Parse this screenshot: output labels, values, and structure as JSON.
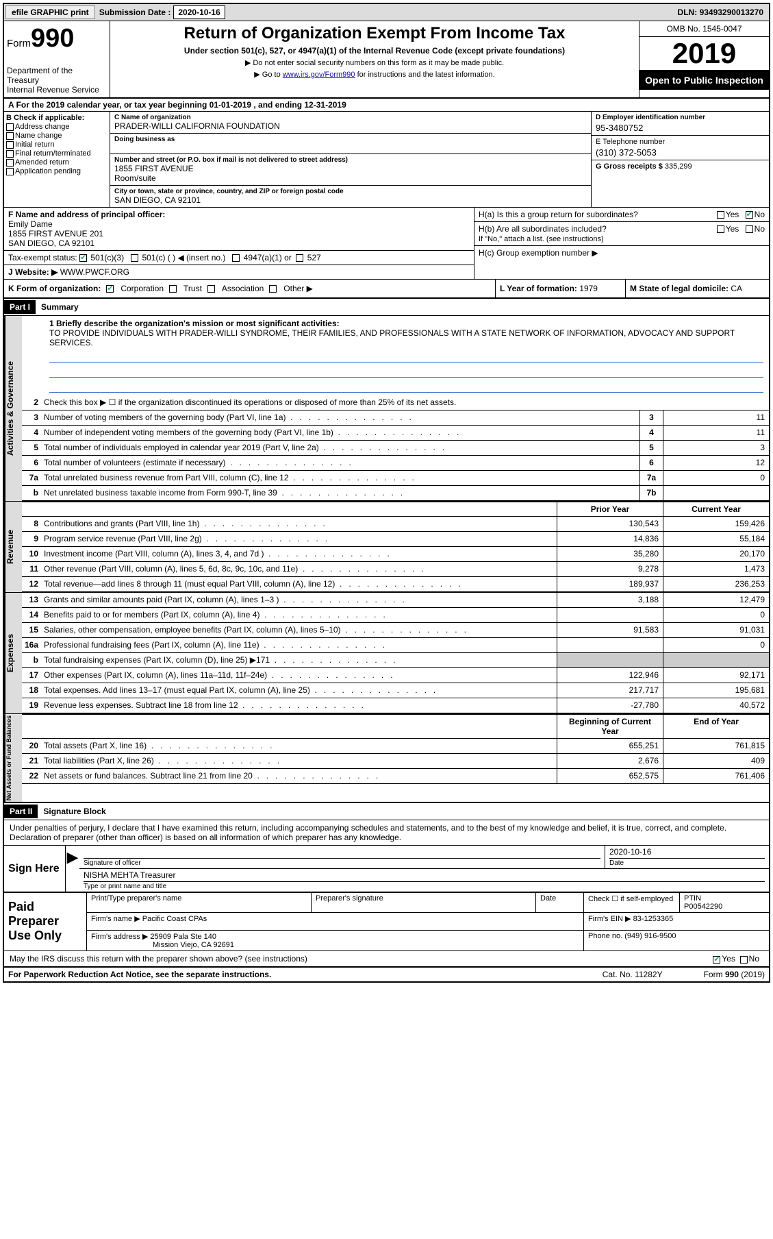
{
  "topbar": {
    "efile": "efile GRAPHIC print",
    "submission_label": "Submission Date :",
    "submission_date": "2020-10-16",
    "dln_label": "DLN:",
    "dln": "93493290013270"
  },
  "header": {
    "form_label": "Form",
    "form_number": "990",
    "dept": "Department of the Treasury\nInternal Revenue Service",
    "title": "Return of Organization Exempt From Income Tax",
    "sub": "Under section 501(c), 527, or 4947(a)(1) of the Internal Revenue Code (except private foundations)",
    "note1": "▶ Do not enter social security numbers on this form as it may be made public.",
    "note2_pre": "▶ Go to ",
    "note2_link": "www.irs.gov/Form990",
    "note2_post": " for instructions and the latest information.",
    "omb": "OMB No. 1545-0047",
    "year": "2019",
    "inspect": "Open to Public Inspection"
  },
  "section_a": "A For the 2019 calendar year, or tax year beginning 01-01-2019   , and ending 12-31-2019",
  "box_b": {
    "label": "B Check if applicable:",
    "items": [
      "Address change",
      "Name change",
      "Initial return",
      "Final return/terminated",
      "Amended return",
      "Application pending"
    ]
  },
  "box_c": {
    "name_lbl": "C Name of organization",
    "name": "PRADER-WILLI CALIFORNIA FOUNDATION",
    "dba_lbl": "Doing business as",
    "street_lbl": "Number and street (or P.O. box if mail is not delivered to street address)",
    "room_lbl": "Room/suite",
    "street": "1855 FIRST AVENUE",
    "city_lbl": "City or town, state or province, country, and ZIP or foreign postal code",
    "city": "SAN DIEGO, CA  92101"
  },
  "box_d": {
    "lbl": "D Employer identification number",
    "val": "95-3480752"
  },
  "box_e": {
    "lbl": "E Telephone number",
    "val": "(310) 372-5053"
  },
  "box_g": {
    "lbl": "G Gross receipts $",
    "val": "335,299"
  },
  "box_f": {
    "lbl": "F Name and address of principal officer:",
    "name": "Emily Dame",
    "addr1": "1855 FIRST AVENUE 201",
    "addr2": "SAN DIEGO, CA  92101"
  },
  "box_h": {
    "a": "H(a)  Is this a group return for subordinates?",
    "b": "H(b)  Are all subordinates included?",
    "b_note": "If \"No,\" attach a list. (see instructions)",
    "c": "H(c)  Group exemption number ▶"
  },
  "tax_status": {
    "lbl": "Tax-exempt status:",
    "opts": [
      "501(c)(3)",
      "501(c) (  ) ◀ (insert no.)",
      "4947(a)(1) or",
      "527"
    ]
  },
  "box_j": {
    "lbl": "J Website: ▶",
    "val": "WWW.PWCF.ORG"
  },
  "box_k": {
    "lbl": "K Form of organization:",
    "opts": [
      "Corporation",
      "Trust",
      "Association",
      "Other ▶"
    ]
  },
  "box_l": {
    "lbl": "L Year of formation:",
    "val": "1979"
  },
  "box_m": {
    "lbl": "M State of legal domicile:",
    "val": "CA"
  },
  "part1": {
    "hdr": "Part I",
    "title": "Summary"
  },
  "mission": {
    "lbl": "1  Briefly describe the organization's mission or most significant activities:",
    "text": "TO PROVIDE INDIVIDUALS WITH PRADER-WILLI SYNDROME, THEIR FAMILIES, AND PROFESSIONALS WITH A STATE NETWORK OF INFORMATION, ADVOCACY AND SUPPORT SERVICES."
  },
  "line2": "Check this box ▶ ☐  if the organization discontinued its operations or disposed of more than 25% of its net assets.",
  "sidebars": {
    "gov": "Activities & Governance",
    "rev": "Revenue",
    "exp": "Expenses",
    "net": "Net Assets or Fund Balances"
  },
  "gov_lines": [
    {
      "n": "3",
      "d": "Number of voting members of the governing body (Part VI, line 1a)",
      "box": "3",
      "v": "11"
    },
    {
      "n": "4",
      "d": "Number of independent voting members of the governing body (Part VI, line 1b)",
      "box": "4",
      "v": "11"
    },
    {
      "n": "5",
      "d": "Total number of individuals employed in calendar year 2019 (Part V, line 2a)",
      "box": "5",
      "v": "3"
    },
    {
      "n": "6",
      "d": "Total number of volunteers (estimate if necessary)",
      "box": "6",
      "v": "12"
    },
    {
      "n": "7a",
      "d": "Total unrelated business revenue from Part VIII, column (C), line 12",
      "box": "7a",
      "v": "0"
    },
    {
      "n": "b",
      "d": "Net unrelated business taxable income from Form 990-T, line 39",
      "box": "7b",
      "v": ""
    }
  ],
  "colhdrs": {
    "py": "Prior Year",
    "cy": "Current Year"
  },
  "rev_lines": [
    {
      "n": "8",
      "d": "Contributions and grants (Part VIII, line 1h)",
      "py": "130,543",
      "cy": "159,426"
    },
    {
      "n": "9",
      "d": "Program service revenue (Part VIII, line 2g)",
      "py": "14,836",
      "cy": "55,184"
    },
    {
      "n": "10",
      "d": "Investment income (Part VIII, column (A), lines 3, 4, and 7d )",
      "py": "35,280",
      "cy": "20,170"
    },
    {
      "n": "11",
      "d": "Other revenue (Part VIII, column (A), lines 5, 6d, 8c, 9c, 10c, and 11e)",
      "py": "9,278",
      "cy": "1,473"
    },
    {
      "n": "12",
      "d": "Total revenue—add lines 8 through 11 (must equal Part VIII, column (A), line 12)",
      "py": "189,937",
      "cy": "236,253"
    }
  ],
  "exp_lines": [
    {
      "n": "13",
      "d": "Grants and similar amounts paid (Part IX, column (A), lines 1–3 )",
      "py": "3,188",
      "cy": "12,479"
    },
    {
      "n": "14",
      "d": "Benefits paid to or for members (Part IX, column (A), line 4)",
      "py": "",
      "cy": "0"
    },
    {
      "n": "15",
      "d": "Salaries, other compensation, employee benefits (Part IX, column (A), lines 5–10)",
      "py": "91,583",
      "cy": "91,031"
    },
    {
      "n": "16a",
      "d": "Professional fundraising fees (Part IX, column (A), line 11e)",
      "py": "",
      "cy": "0"
    },
    {
      "n": "b",
      "d": "Total fundraising expenses (Part IX, column (D), line 25) ▶171",
      "py": "shade",
      "cy": "shade"
    },
    {
      "n": "17",
      "d": "Other expenses (Part IX, column (A), lines 11a–11d, 11f–24e)",
      "py": "122,946",
      "cy": "92,171"
    },
    {
      "n": "18",
      "d": "Total expenses. Add lines 13–17 (must equal Part IX, column (A), line 25)",
      "py": "217,717",
      "cy": "195,681"
    },
    {
      "n": "19",
      "d": "Revenue less expenses. Subtract line 18 from line 12",
      "py": "-27,780",
      "cy": "40,572"
    }
  ],
  "net_hdrs": {
    "b": "Beginning of Current Year",
    "e": "End of Year"
  },
  "net_lines": [
    {
      "n": "20",
      "d": "Total assets (Part X, line 16)",
      "py": "655,251",
      "cy": "761,815"
    },
    {
      "n": "21",
      "d": "Total liabilities (Part X, line 26)",
      "py": "2,676",
      "cy": "409"
    },
    {
      "n": "22",
      "d": "Net assets or fund balances. Subtract line 21 from line 20",
      "py": "652,575",
      "cy": "761,406"
    }
  ],
  "part2": {
    "hdr": "Part II",
    "title": "Signature Block"
  },
  "sig_text": "Under penalties of perjury, I declare that I have examined this return, including accompanying schedules and statements, and to the best of my knowledge and belief, it is true, correct, and complete. Declaration of preparer (other than officer) is based on all information of which preparer has any knowledge.",
  "sign_here": "Sign Here",
  "sig": {
    "officer_lbl": "Signature of officer",
    "date_lbl": "Date",
    "date": "2020-10-16",
    "name": "NISHA MEHTA Treasurer",
    "name_lbl": "Type or print name and title"
  },
  "prep": {
    "hdr": "Paid Preparer Use Only",
    "pt_name_lbl": "Print/Type preparer's name",
    "sig_lbl": "Preparer's signature",
    "date_lbl": "Date",
    "check_lbl": "Check ☐ if self-employed",
    "ptin_lbl": "PTIN",
    "ptin": "P00542290",
    "firm_name_lbl": "Firm's name    ▶",
    "firm_name": "Pacific Coast CPAs",
    "firm_ein_lbl": "Firm's EIN ▶",
    "firm_ein": "83-1253365",
    "firm_addr_lbl": "Firm's address ▶",
    "firm_addr1": "25909 Pala Ste 140",
    "firm_addr2": "Mission Viejo, CA  92691",
    "phone_lbl": "Phone no.",
    "phone": "(949) 916-9500"
  },
  "discuss": "May the IRS discuss this return with the preparer shown above? (see instructions)",
  "footer": {
    "left": "For Paperwork Reduction Act Notice, see the separate instructions.",
    "center": "Cat. No. 11282Y",
    "right": "Form 990 (2019)"
  },
  "colors": {
    "accent": "#2a7a2a"
  }
}
